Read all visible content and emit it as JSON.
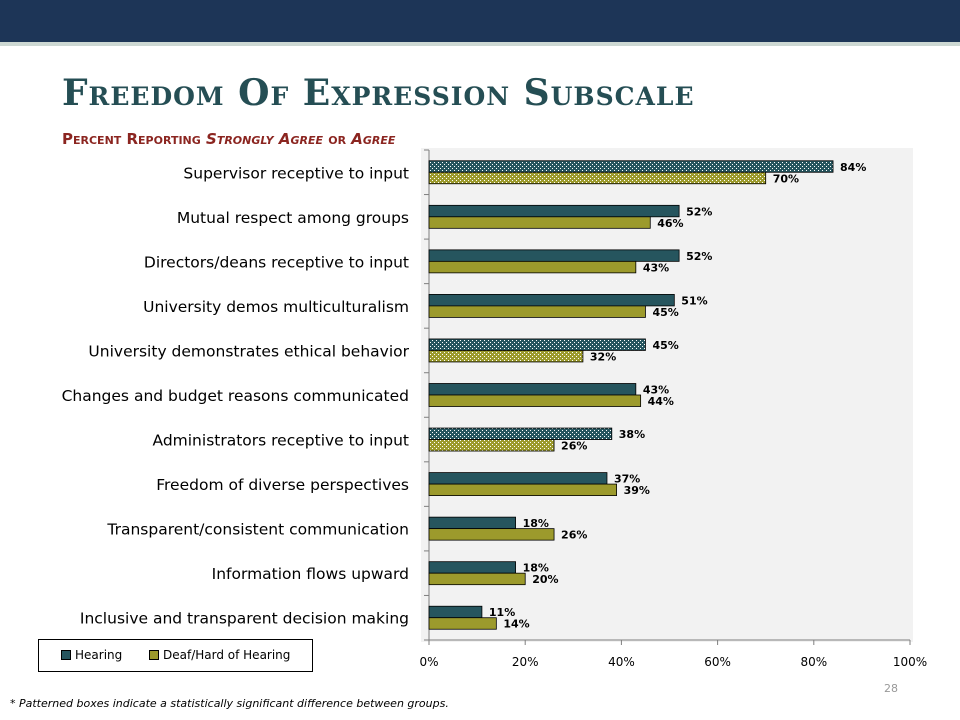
{
  "header": {
    "title": "Freedom Of Expression Subscale",
    "subtitle_parts": [
      "Percent Reporting ",
      "Strongly Agree",
      " or ",
      "Agree"
    ]
  },
  "footnote": "* Patterned boxes indicate a statistically significant difference between groups.",
  "page_number": "28",
  "colors": {
    "hearing": "#26555e",
    "deaf": "#9c9a2c",
    "axis": "#7f7f7f"
  },
  "chart_data": {
    "type": "bar",
    "orientation": "horizontal",
    "title": "Freedom Of Expression Subscale",
    "subtitle": "Percent Reporting Strongly Agree or Agree",
    "categories": [
      "Supervisor receptive to input",
      "Mutual respect among groups",
      "Directors/deans receptive to input",
      "University demos multiculturalism",
      "University demonstrates ethical behavior",
      "Changes and budget reasons communicated",
      "Administrators receptive to input",
      "Freedom of diverse perspectives",
      "Transparent/consistent communication",
      "Information flows upward",
      "Inclusive and transparent decision making"
    ],
    "series": [
      {
        "name": "Hearing",
        "values": [
          84,
          52,
          52,
          51,
          45,
          43,
          38,
          37,
          18,
          18,
          11
        ]
      },
      {
        "name": "Deaf/Hard of Hearing",
        "values": [
          70,
          46,
          43,
          45,
          32,
          44,
          26,
          39,
          26,
          20,
          14
        ]
      }
    ],
    "patterned": [
      true,
      false,
      false,
      false,
      true,
      false,
      true,
      false,
      false,
      false,
      false
    ],
    "xlim": [
      0,
      100
    ],
    "xticks": [
      "0%",
      "20%",
      "40%",
      "60%",
      "80%",
      "100%"
    ],
    "grid": false,
    "legend_position": "bottom-left"
  }
}
